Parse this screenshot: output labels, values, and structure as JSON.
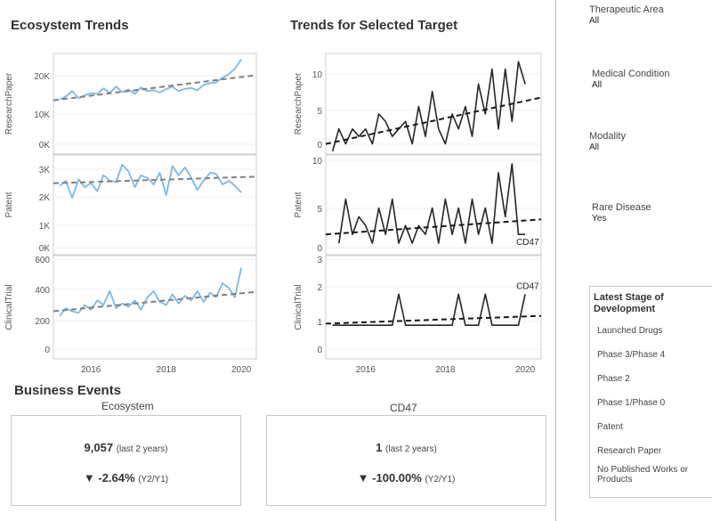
{
  "headings": {
    "ecosystem_trends": "Ecosystem Trends",
    "trends_selected": "Trends for Selected Target",
    "business_events": "Business Events"
  },
  "chart_data": [
    {
      "type": "line",
      "panel": "Ecosystem Trends - ResearchPaper",
      "ylabel": "ResearchPaper",
      "yticks": [
        "0K",
        "10K",
        "20K"
      ],
      "ylim": [
        0,
        26000
      ],
      "xlim": [
        2015,
        2020.4
      ],
      "color": "#7ab9e8",
      "x": [
        2015.17,
        2015.33,
        2015.5,
        2015.67,
        2015.83,
        2016.0,
        2016.17,
        2016.33,
        2016.5,
        2016.67,
        2016.83,
        2017.0,
        2017.17,
        2017.33,
        2017.5,
        2017.67,
        2017.83,
        2018.0,
        2018.17,
        2018.33,
        2018.5,
        2018.67,
        2018.83,
        2019.0,
        2019.17,
        2019.33,
        2019.5,
        2019.67,
        2019.83,
        2020.0
      ],
      "values": [
        14500,
        15200,
        16800,
        14800,
        15600,
        16200,
        16000,
        17500,
        16300,
        18000,
        16500,
        17200,
        16000,
        17800,
        16800,
        17000,
        16400,
        17300,
        18000,
        16800,
        17400,
        17600,
        17000,
        18500,
        19000,
        19200,
        20500,
        21500,
        23000,
        25600
      ],
      "trend": [
        [
          2015,
          14200
        ],
        [
          2020.4,
          21200
        ]
      ]
    },
    {
      "type": "line",
      "panel": "Ecosystem Trends - Patent",
      "ylabel": "Patent",
      "yticks": [
        "0K",
        "1K",
        "2K",
        "3K"
      ],
      "ylim": [
        0,
        3500
      ],
      "xlim": [
        2015,
        2020.4
      ],
      "color": "#7ab9e8",
      "x": [
        2015.17,
        2015.33,
        2015.5,
        2015.67,
        2015.83,
        2016.0,
        2016.17,
        2016.33,
        2016.5,
        2016.67,
        2016.83,
        2017.0,
        2017.17,
        2017.33,
        2017.5,
        2017.67,
        2017.83,
        2018.0,
        2018.17,
        2018.33,
        2018.5,
        2018.67,
        2018.83,
        2019.0,
        2019.17,
        2019.33,
        2019.5,
        2019.67,
        2019.83,
        2020.0
      ],
      "values": [
        2500,
        2700,
        2050,
        2750,
        2450,
        2600,
        2300,
        2900,
        2700,
        2650,
        3300,
        3050,
        2450,
        2900,
        2800,
        2550,
        3000,
        2150,
        3250,
        2900,
        3200,
        2800,
        2350,
        2700,
        3000,
        2950,
        2550,
        2700,
        2500,
        2250
      ],
      "trend": [
        [
          2015,
          2600
        ],
        [
          2020.4,
          2850
        ]
      ]
    },
    {
      "type": "line",
      "panel": "Ecosystem Trends - ClinicalTrial",
      "ylabel": "ClinicalTrial",
      "yticks": [
        "0",
        "200",
        "400",
        "600"
      ],
      "xticks": [
        "2016",
        "2018",
        "2020"
      ],
      "ylim": [
        0,
        620
      ],
      "xlim": [
        2015,
        2020.4
      ],
      "color": "#7ab9e8",
      "x": [
        2015.17,
        2015.33,
        2015.5,
        2015.67,
        2015.83,
        2016.0,
        2016.17,
        2016.33,
        2016.5,
        2016.67,
        2016.83,
        2017.0,
        2017.17,
        2017.33,
        2017.5,
        2017.67,
        2017.83,
        2018.0,
        2018.17,
        2018.33,
        2018.5,
        2018.67,
        2018.83,
        2019.0,
        2019.17,
        2019.33,
        2019.5,
        2019.67,
        2019.83,
        2020.0
      ],
      "values": [
        260,
        310,
        290,
        280,
        330,
        300,
        360,
        330,
        420,
        310,
        340,
        320,
        360,
        300,
        380,
        420,
        350,
        330,
        400,
        340,
        390,
        360,
        420,
        350,
        410,
        380,
        470,
        440,
        380,
        570
      ],
      "trend": [
        [
          2015,
          290
        ],
        [
          2020.4,
          415
        ]
      ]
    },
    {
      "type": "line",
      "panel": "Trends for Selected Target - ResearchPaper",
      "ylabel": "ResearchPaper",
      "yticks": [
        "0",
        "5",
        "10"
      ],
      "ylim": [
        0,
        12.5
      ],
      "xlim": [
        2015,
        2020.4
      ],
      "color": "#262626",
      "x": [
        2015.17,
        2015.33,
        2015.5,
        2015.67,
        2015.83,
        2016.0,
        2016.17,
        2016.33,
        2016.5,
        2016.67,
        2016.83,
        2017.0,
        2017.17,
        2017.33,
        2017.5,
        2017.67,
        2017.83,
        2018.0,
        2018.17,
        2018.33,
        2018.5,
        2018.67,
        2018.83,
        2019.0,
        2019.17,
        2019.33,
        2019.5,
        2019.67,
        2019.83,
        2020.0
      ],
      "values": [
        0,
        3,
        1,
        3,
        2,
        3,
        1,
        5,
        4,
        2,
        3,
        4,
        1,
        6,
        2,
        8,
        3,
        1,
        5,
        3,
        6,
        2,
        9,
        5,
        11,
        3,
        11,
        4,
        12,
        9
      ],
      "trend": [
        [
          2015,
          1.0
        ],
        [
          2020.4,
          7.2
        ]
      ]
    },
    {
      "type": "line",
      "panel": "Trends for Selected Target - Patent",
      "ylabel": "Patent",
      "yticks": [
        "0",
        "5",
        "10"
      ],
      "ylim": [
        0,
        10.5
      ],
      "xlim": [
        2015,
        2020.4
      ],
      "color": "#262626",
      "x": [
        2015.33,
        2015.5,
        2015.67,
        2015.83,
        2016.0,
        2016.17,
        2016.33,
        2016.5,
        2016.67,
        2016.83,
        2017.0,
        2017.17,
        2017.33,
        2017.5,
        2017.67,
        2017.83,
        2018.0,
        2018.17,
        2018.33,
        2018.5,
        2018.67,
        2018.83,
        2019.0,
        2019.17,
        2019.33,
        2019.5,
        2019.67,
        2019.83,
        2020.0
      ],
      "values": [
        1,
        6,
        2,
        4,
        3,
        1,
        5,
        2,
        6,
        1,
        3,
        1,
        3,
        2,
        5,
        1,
        6,
        2,
        5,
        1,
        6,
        2,
        5,
        1,
        9,
        4,
        10,
        2,
        2
      ],
      "trend": [
        [
          2015,
          2.0
        ],
        [
          2020.4,
          3.7
        ]
      ],
      "end_label": "CD47"
    },
    {
      "type": "line",
      "panel": "Trends for Selected Target - ClinicalTrial",
      "ylabel": "ClinicalTrial",
      "yticks": [
        "0",
        "1",
        "2",
        "3"
      ],
      "xticks": [
        "2016",
        "2018",
        "2020"
      ],
      "ylim": [
        0,
        3.1
      ],
      "xlim": [
        2015,
        2020.4
      ],
      "color": "#262626",
      "x": [
        2015.17,
        2015.5,
        2016.0,
        2016.5,
        2016.67,
        2016.83,
        2017.0,
        2017.5,
        2017.83,
        2018.0,
        2018.17,
        2018.33,
        2018.5,
        2018.67,
        2018.83,
        2019.0,
        2019.17,
        2019.5,
        2019.67,
        2019.83,
        2020.0
      ],
      "values": [
        1,
        1,
        1,
        1,
        1,
        2,
        1,
        1,
        1,
        1,
        1,
        2,
        1,
        1,
        1,
        2,
        1,
        1,
        1,
        1,
        2
      ],
      "trend": [
        [
          2015,
          1.05
        ],
        [
          2020.4,
          1.3
        ]
      ],
      "end_label": "CD47"
    }
  ],
  "kpis": [
    {
      "header": "Ecosystem",
      "value": "9,057",
      "value_note": "(last 2 years)",
      "arrow": "▼",
      "change": "-2.64%",
      "change_note": "(Y2/Y1)"
    },
    {
      "header": "CD47",
      "value": "1",
      "value_note": "(last 2 years)",
      "arrow": "▼",
      "change": "-100.00%",
      "change_note": "(Y2/Y1)"
    }
  ],
  "filters": [
    {
      "label": "Therapeutic Area",
      "value": "All"
    },
    {
      "label": "Medical Condition",
      "value": "All"
    },
    {
      "label": "Modality",
      "value": "All"
    },
    {
      "label": "Rare Disease",
      "value": "Yes"
    }
  ],
  "legend": {
    "title": "Latest Stage of Development",
    "items": [
      "Launched Drugs",
      "Phase 3/Phase 4",
      "Phase 2",
      "Phase 1/Phase 0",
      "Patent",
      "Research Paper",
      "No Published Works or Products"
    ]
  }
}
